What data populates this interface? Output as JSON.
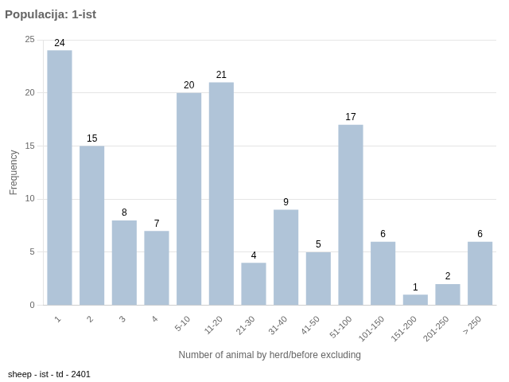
{
  "chart_data": {
    "type": "bar",
    "title": "Populacija: 1-ist",
    "categories": [
      "1",
      "2",
      "3",
      "4",
      "5-10",
      "11-20",
      "21-30",
      "31-40",
      "41-50",
      "51-100",
      "101-150",
      "151-200",
      "201-250",
      "> 250"
    ],
    "values": [
      24,
      15,
      8,
      7,
      20,
      21,
      4,
      9,
      5,
      17,
      6,
      1,
      2,
      6
    ],
    "color": "#b0c4d8",
    "xlabel": "Number of animal by herd/before excluding",
    "ylabel": "Frequency",
    "annotations": [
      "sheep - ist - td - 2401"
    ],
    "ylim": [
      0,
      25
    ],
    "yticks": [
      0,
      5,
      10,
      15,
      20,
      25
    ],
    "grid": true,
    "data_labels": true
  }
}
